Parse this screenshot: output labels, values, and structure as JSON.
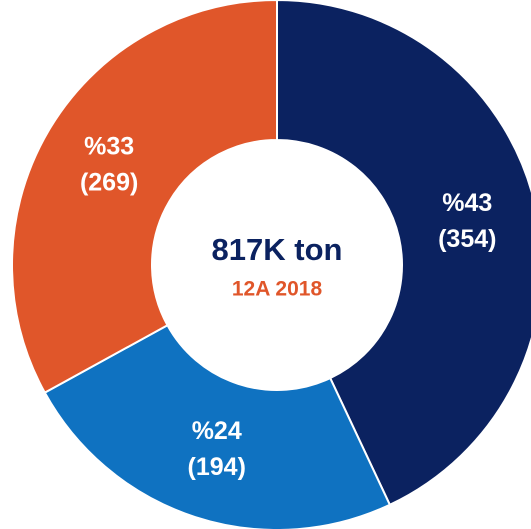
{
  "chart_data": {
    "type": "donut",
    "categories": [
      null,
      null,
      null
    ],
    "values": [
      43,
      24,
      33
    ],
    "value_labels": [
      "%43",
      "%24",
      "%33"
    ],
    "count_labels": [
      "(354)",
      "(194)",
      "(269)"
    ],
    "colors": [
      "#0b2260",
      "#0f72c1",
      "#e0562a"
    ],
    "center_title": "817K ton",
    "center_subtitle": "12A 2018"
  }
}
